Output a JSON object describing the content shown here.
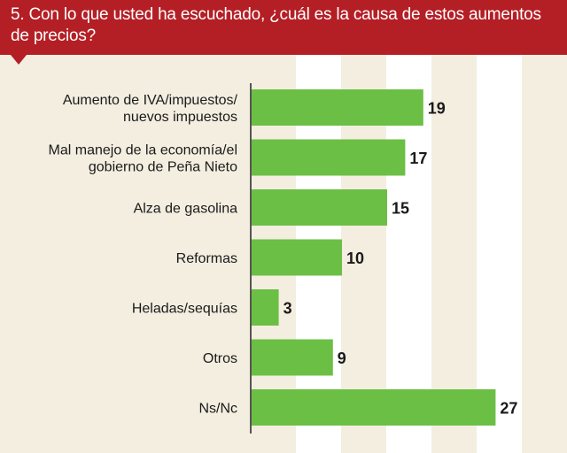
{
  "chart_data": {
    "type": "bar",
    "orientation": "horizontal",
    "title": "5. Con lo que usted ha escuchado, ¿cuál es la causa  de estos aumentos de precios?",
    "categories": [
      [
        "Aumento de IVA/impuestos/",
        "nuevos impuestos"
      ],
      [
        "Mal manejo de la economía/el",
        "gobierno de Peña Nieto"
      ],
      [
        "Alza de gasolina"
      ],
      [
        "Reformas"
      ],
      [
        "Heladas/sequías"
      ],
      [
        "Otros"
      ],
      [
        "Ns/Nc"
      ]
    ],
    "values": [
      19,
      17,
      15,
      10,
      3,
      9,
      27
    ],
    "value_labels": [
      "19",
      "17",
      "15",
      "10",
      "3",
      "9",
      "27"
    ],
    "xlim": [
      0,
      30
    ],
    "xlabel": "",
    "ylabel": "",
    "bar_color": "#6cbf45",
    "header_color": "#b41f25"
  }
}
